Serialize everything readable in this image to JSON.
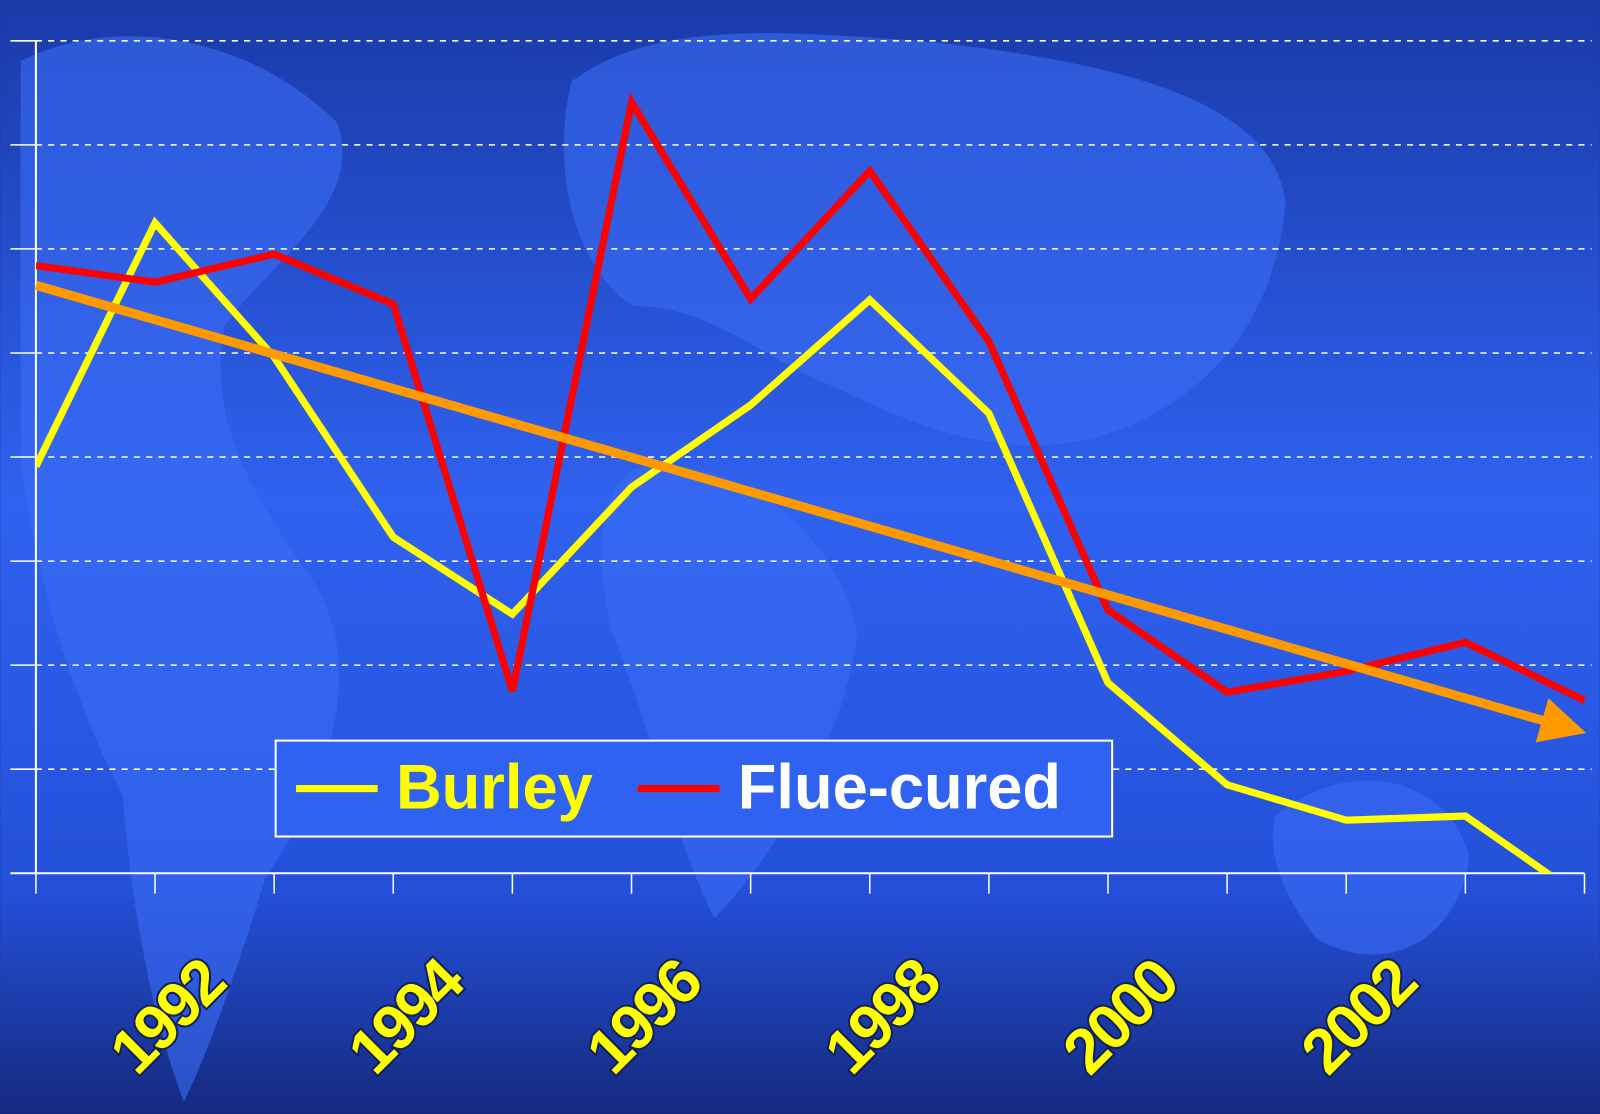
{
  "chart_data": {
    "type": "line",
    "categories": [
      null,
      "1992",
      null,
      "1994",
      null,
      "1996",
      null,
      "1998",
      null,
      "2000",
      null,
      "2002",
      null,
      null
    ],
    "series": [
      {
        "name": "Burley",
        "color": "#ffff00",
        "values": [
          3.91,
          6.25,
          4.96,
          3.23,
          2.49,
          3.71,
          4.5,
          5.51,
          4.42,
          1.83,
          0.85,
          0.51,
          0.55,
          -0.25
        ]
      },
      {
        "name": "Flue-cured",
        "color": "#ff0000",
        "values": [
          5.84,
          5.68,
          5.95,
          5.47,
          1.75,
          7.41,
          5.52,
          6.75,
          5.11,
          2.53,
          1.74,
          1.94,
          2.22,
          1.66
        ]
      }
    ],
    "trend": {
      "color": "#ff9900",
      "values": [
        5.65,
        1.35
      ]
    },
    "ylim": [
      0,
      8
    ],
    "yticks": [
      0,
      1,
      2,
      3,
      4,
      5,
      6,
      7,
      8
    ],
    "grid": true,
    "legend": "bottom"
  }
}
